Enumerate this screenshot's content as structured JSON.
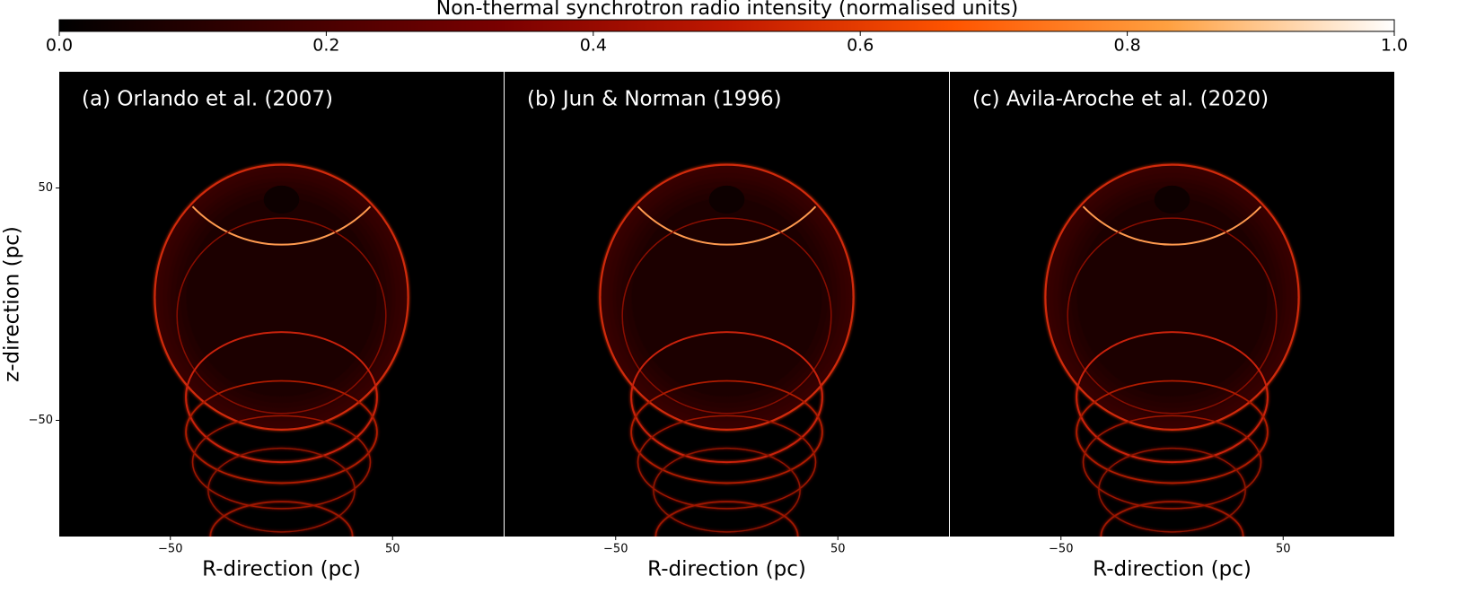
{
  "colorbar": {
    "label": "Non-thermal synchrotron radio intensity (normalised units)",
    "lim": [
      0,
      1
    ],
    "ticks": [
      {
        "value": 0,
        "label": "0.0"
      },
      0.2,
      0.4,
      0.6,
      0.8,
      {
        "value": 1,
        "label": "1.0"
      }
    ]
  },
  "chart_data": [
    {
      "type": "heatmap",
      "title": "(a) Orlando et al. (2007)",
      "xlabel": "R-direction (pc)",
      "ylabel": "z-direction (pc)",
      "xlim": [
        -100,
        100
      ],
      "ylim": [
        -100,
        100
      ],
      "xticks": [
        {
          "value": -50,
          "label": "−50"
        },
        50
      ],
      "yticks": [
        50,
        {
          "value": -50,
          "label": "−50"
        }
      ]
    },
    {
      "type": "heatmap",
      "title": "(b) Jun & Norman (1996)",
      "xlabel": "R-direction (pc)",
      "xlim": [
        -100,
        100
      ],
      "ylim": [
        -100,
        100
      ],
      "xticks": [
        {
          "value": -50,
          "label": "−50"
        },
        50
      ]
    },
    {
      "type": "heatmap",
      "title": "(c) Avila-Aroche et al. (2020)",
      "xlabel": "R-direction (pc)",
      "xlim": [
        -100,
        100
      ],
      "ylim": [
        -100,
        100
      ],
      "xticks": [
        {
          "value": -50,
          "label": "−50"
        },
        50
      ]
    }
  ]
}
